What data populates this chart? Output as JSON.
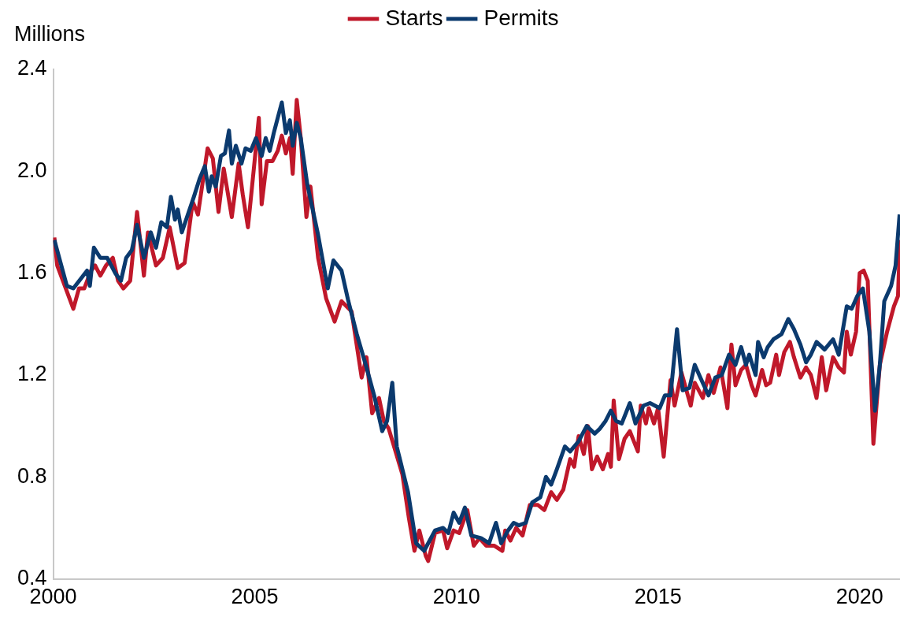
{
  "chart_data": {
    "type": "line",
    "ylabel": "Millions",
    "xlim": [
      2000,
      2021
    ],
    "xticks": [
      2000,
      2005,
      2010,
      2015,
      2020
    ],
    "ylim": [
      0.4,
      2.4
    ],
    "yticks": [
      0.4,
      0.8,
      1.2,
      1.6,
      {
        "value": 2,
        "label": "2.0"
      },
      2.4
    ],
    "grid": false,
    "legend": "top",
    "marker": "none",
    "line_style": "solid",
    "series": [
      {
        "name": "Starts",
        "color": "#c0182a",
        "x": [
          2000.03,
          2000.1,
          2000.5,
          2000.64,
          2000.77,
          2000.94,
          2001.04,
          2001.17,
          2001.31,
          2001.48,
          2001.61,
          2001.74,
          2001.91,
          2002.08,
          2002.25,
          2002.35,
          2002.55,
          2002.72,
          2002.89,
          2003.09,
          2003.26,
          2003.46,
          2003.59,
          2003.83,
          2003.96,
          2004.1,
          2004.23,
          2004.43,
          2004.6,
          2004.7,
          2004.83,
          2004.97,
          2005.1,
          2005.17,
          2005.3,
          2005.44,
          2005.57,
          2005.67,
          2005.77,
          2005.87,
          2005.94,
          2006.04,
          2006.14,
          2006.28,
          2006.38,
          2006.57,
          2006.77,
          2006.98,
          2007.15,
          2007.4,
          2007.65,
          2007.77,
          2007.91,
          2008.08,
          2008.2,
          2008.32,
          2008.66,
          2008.82,
          2008.96,
          2009.08,
          2009.24,
          2009.3,
          2009.47,
          2009.67,
          2009.77,
          2009.93,
          2010.07,
          2010.27,
          2010.43,
          2010.57,
          2010.74,
          2010.94,
          2011.14,
          2011.21,
          2011.34,
          2011.48,
          2011.64,
          2011.82,
          2012.02,
          2012.18,
          2012.35,
          2012.49,
          2012.65,
          2012.82,
          2012.92,
          2013.03,
          2013.16,
          2013.26,
          2013.36,
          2013.49,
          2013.63,
          2013.76,
          2013.83,
          2013.9,
          2014.03,
          2014.17,
          2014.3,
          2014.5,
          2014.57,
          2014.7,
          2014.77,
          2014.9,
          2015.0,
          2015.14,
          2015.31,
          2015.41,
          2015.58,
          2015.81,
          2015.91,
          2016.11,
          2016.25,
          2016.38,
          2016.55,
          2016.72,
          2016.82,
          2016.92,
          2017.06,
          2017.18,
          2017.32,
          2017.42,
          2017.58,
          2017.68,
          2017.78,
          2017.93,
          2018.0,
          2018.13,
          2018.27,
          2018.37,
          2018.53,
          2018.67,
          2018.79,
          2018.93,
          2019.06,
          2019.17,
          2019.34,
          2019.48,
          2019.61,
          2019.68,
          2019.78,
          2019.91,
          2020.0,
          2020.1,
          2020.2,
          2020.34,
          2020.5,
          2020.68,
          2020.85,
          2020.95,
          2021.0
        ],
        "values": [
          1.74,
          1.63,
          1.46,
          1.54,
          1.54,
          1.61,
          1.63,
          1.59,
          1.63,
          1.66,
          1.57,
          1.54,
          1.57,
          1.84,
          1.59,
          1.76,
          1.63,
          1.66,
          1.78,
          1.62,
          1.64,
          1.88,
          1.83,
          2.09,
          2.05,
          1.84,
          2.01,
          1.82,
          2.03,
          1.91,
          1.78,
          2.0,
          2.21,
          1.87,
          2.04,
          2.04,
          2.08,
          2.14,
          2.07,
          2.13,
          1.99,
          2.28,
          2.13,
          1.82,
          1.94,
          1.66,
          1.5,
          1.41,
          1.49,
          1.45,
          1.19,
          1.27,
          1.05,
          1.11,
          1.02,
          0.99,
          0.81,
          0.64,
          0.51,
          0.59,
          0.49,
          0.47,
          0.58,
          0.59,
          0.52,
          0.59,
          0.58,
          0.67,
          0.53,
          0.56,
          0.53,
          0.53,
          0.51,
          0.59,
          0.55,
          0.6,
          0.57,
          0.69,
          0.69,
          0.67,
          0.74,
          0.71,
          0.75,
          0.87,
          0.84,
          0.96,
          0.89,
          1.0,
          0.83,
          0.88,
          0.83,
          0.89,
          0.84,
          1.1,
          0.87,
          0.95,
          0.98,
          0.9,
          1.08,
          1.01,
          1.07,
          1.01,
          1.07,
          0.88,
          1.18,
          1.08,
          1.21,
          1.08,
          1.17,
          1.11,
          1.2,
          1.13,
          1.23,
          1.07,
          1.32,
          1.16,
          1.22,
          1.24,
          1.16,
          1.12,
          1.22,
          1.16,
          1.17,
          1.28,
          1.2,
          1.29,
          1.33,
          1.27,
          1.19,
          1.23,
          1.2,
          1.11,
          1.27,
          1.14,
          1.27,
          1.23,
          1.21,
          1.37,
          1.28,
          1.37,
          1.6,
          1.61,
          1.57,
          0.93,
          1.24,
          1.37,
          1.47,
          1.51,
          1.73
        ]
      },
      {
        "name": "Permits",
        "color": "#0b3a6e",
        "x": [
          2000.03,
          2000.34,
          2000.5,
          2000.84,
          2000.91,
          2001.01,
          2001.17,
          2001.34,
          2001.54,
          2001.68,
          2001.81,
          2001.95,
          2002.08,
          2002.25,
          2002.42,
          2002.55,
          2002.68,
          2002.82,
          2002.92,
          2003.02,
          2003.09,
          2003.19,
          2003.49,
          2003.63,
          2003.76,
          2003.86,
          2003.93,
          2004.03,
          2004.16,
          2004.26,
          2004.36,
          2004.43,
          2004.53,
          2004.67,
          2004.77,
          2004.9,
          2005.03,
          2005.17,
          2005.27,
          2005.37,
          2005.47,
          2005.57,
          2005.67,
          2005.77,
          2005.87,
          2005.94,
          2006.04,
          2006.14,
          2006.3,
          2006.57,
          2006.81,
          2006.95,
          2007.15,
          2007.32,
          2007.53,
          2007.77,
          2007.96,
          2008.16,
          2008.28,
          2008.41,
          2008.52,
          2008.8,
          2009.0,
          2009.2,
          2009.47,
          2009.67,
          2009.8,
          2009.93,
          2010.07,
          2010.21,
          2010.37,
          2010.61,
          2010.81,
          2010.98,
          2011.11,
          2011.28,
          2011.42,
          2011.55,
          2011.72,
          2011.88,
          2012.08,
          2012.22,
          2012.35,
          2012.49,
          2012.69,
          2012.82,
          2013.03,
          2013.23,
          2013.43,
          2013.56,
          2013.7,
          2013.83,
          2013.96,
          2014.1,
          2014.3,
          2014.44,
          2014.64,
          2014.8,
          2015.04,
          2015.17,
          2015.31,
          2015.47,
          2015.61,
          2015.78,
          2015.91,
          2016.05,
          2016.25,
          2016.42,
          2016.58,
          2016.76,
          2016.92,
          2017.06,
          2017.18,
          2017.26,
          2017.42,
          2017.48,
          2017.62,
          2017.72,
          2017.86,
          2018.06,
          2018.23,
          2018.37,
          2018.53,
          2018.67,
          2018.79,
          2018.93,
          2019.13,
          2019.34,
          2019.48,
          2019.68,
          2019.8,
          2019.94,
          2020.08,
          2020.24,
          2020.38,
          2020.5,
          2020.61,
          2020.78,
          2020.89,
          2020.99
        ],
        "values": [
          1.73,
          1.55,
          1.54,
          1.61,
          1.55,
          1.7,
          1.66,
          1.66,
          1.6,
          1.57,
          1.66,
          1.69,
          1.79,
          1.66,
          1.76,
          1.7,
          1.8,
          1.78,
          1.9,
          1.81,
          1.85,
          1.76,
          1.9,
          1.97,
          2.02,
          1.92,
          1.98,
          1.94,
          2.06,
          2.07,
          2.16,
          2.03,
          2.1,
          2.03,
          2.09,
          2.08,
          2.13,
          2.06,
          2.13,
          2.08,
          2.15,
          2.21,
          2.27,
          2.15,
          2.2,
          2.1,
          2.19,
          2.13,
          1.95,
          1.75,
          1.54,
          1.65,
          1.61,
          1.49,
          1.36,
          1.23,
          1.12,
          0.98,
          1.02,
          1.17,
          0.92,
          0.74,
          0.54,
          0.51,
          0.59,
          0.6,
          0.58,
          0.66,
          0.62,
          0.68,
          0.57,
          0.56,
          0.54,
          0.62,
          0.54,
          0.59,
          0.62,
          0.61,
          0.62,
          0.7,
          0.72,
          0.8,
          0.77,
          0.83,
          0.92,
          0.9,
          0.94,
          1.0,
          0.97,
          0.99,
          1.02,
          1.06,
          1.02,
          1.01,
          1.09,
          1.01,
          1.08,
          1.09,
          1.07,
          1.12,
          1.12,
          1.38,
          1.14,
          1.15,
          1.24,
          1.19,
          1.12,
          1.19,
          1.2,
          1.28,
          1.24,
          1.31,
          1.24,
          1.28,
          1.2,
          1.33,
          1.27,
          1.31,
          1.34,
          1.36,
          1.42,
          1.38,
          1.32,
          1.25,
          1.28,
          1.33,
          1.3,
          1.34,
          1.28,
          1.47,
          1.46,
          1.51,
          1.54,
          1.37,
          1.06,
          1.24,
          1.49,
          1.55,
          1.63,
          1.83
        ]
      }
    ]
  }
}
